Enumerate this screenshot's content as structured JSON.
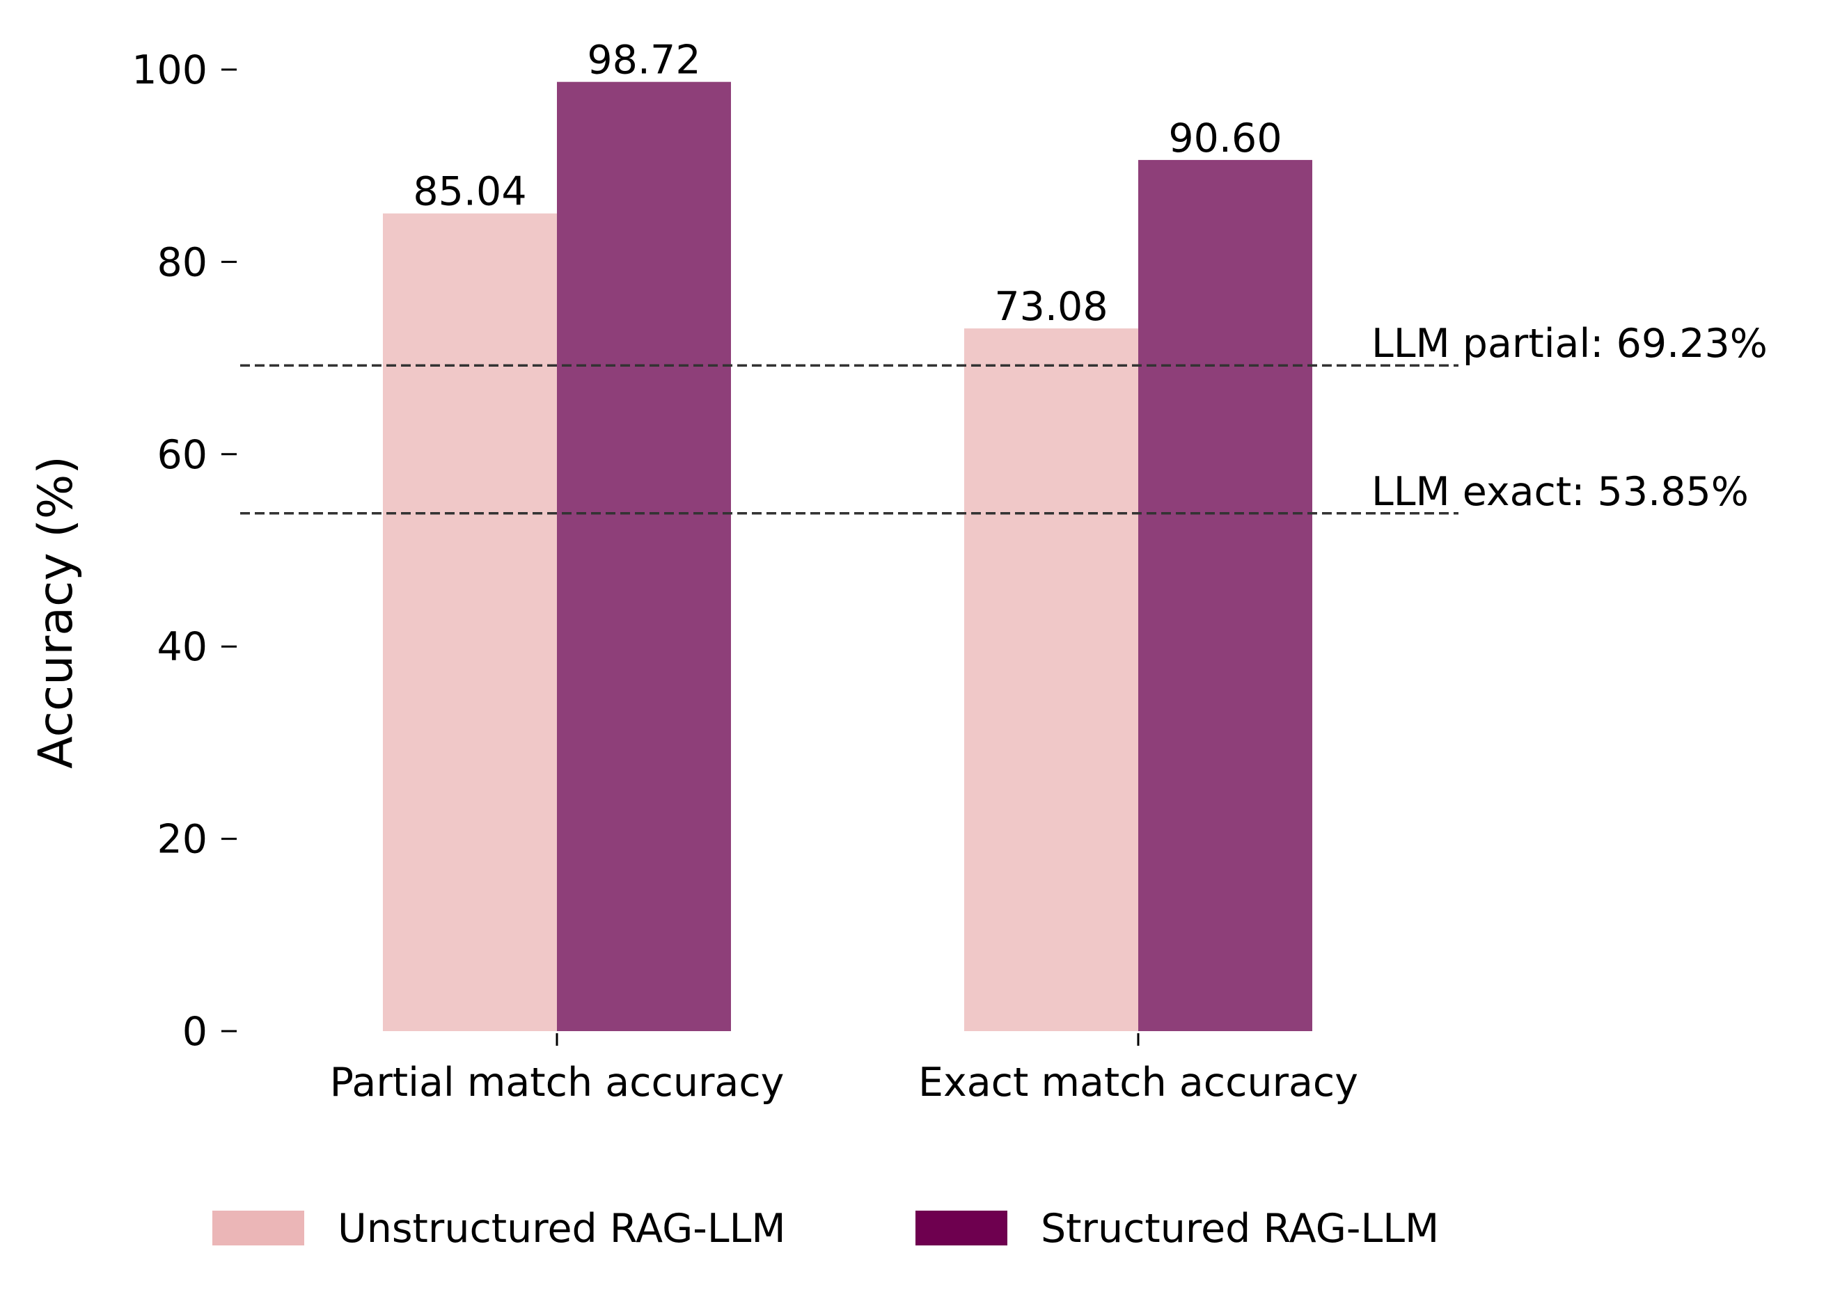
{
  "chart_data": {
    "type": "bar",
    "categories": [
      "Partial match accuracy",
      "Exact match accuracy"
    ],
    "series": [
      {
        "name": "Unstructured RAG-LLM",
        "values": [
          85.04,
          73.08
        ],
        "value_labels": [
          "85.04",
          "73.08"
        ],
        "color": "#f0c8c8",
        "legend_color": "#ebb6b7"
      },
      {
        "name": "Structured RAG-LLM",
        "values": [
          98.72,
          90.6
        ],
        "value_labels": [
          "98.72",
          "90.60"
        ],
        "color": "#8e3f79",
        "legend_color": "#6e004f"
      }
    ],
    "reference_lines": [
      {
        "label": "LLM partial: 69.23%",
        "value": 69.23
      },
      {
        "label": "LLM exact: 53.85%",
        "value": 53.85
      }
    ],
    "xlabel": "",
    "ylabel": "Accuracy (%)",
    "ylim": [
      0,
      100
    ],
    "yticks": [
      0,
      20,
      40,
      60,
      80,
      100
    ],
    "grid": false,
    "legend_position": "bottom-center",
    "reference_line_color": "#333333"
  }
}
